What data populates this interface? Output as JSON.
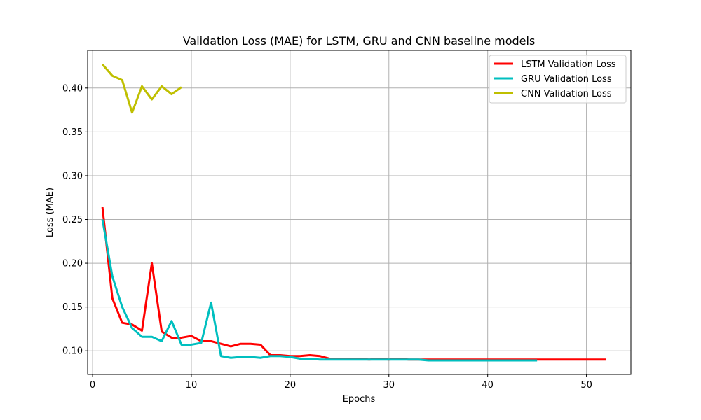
{
  "chart_data": {
    "type": "line",
    "title": "Validation Loss (MAE) for LSTM, GRU and CNN baseline models",
    "xlabel": "Epochs",
    "ylabel": "Loss (MAE)",
    "xlim": [
      -0.5,
      54.5
    ],
    "ylim": [
      0.073,
      0.443
    ],
    "xticks": [
      0,
      10,
      20,
      30,
      40,
      50
    ],
    "yticks": [
      0.1,
      0.15,
      0.2,
      0.25,
      0.3,
      0.35,
      0.4
    ],
    "ytick_labels": [
      "0.10",
      "0.15",
      "0.20",
      "0.25",
      "0.30",
      "0.35",
      "0.40"
    ],
    "grid": true,
    "legend_position": "top-right",
    "series": [
      {
        "name": "LSTM Validation Loss",
        "color": "#ff0000",
        "x": [
          1,
          2,
          3,
          4,
          5,
          6,
          7,
          8,
          9,
          10,
          11,
          12,
          13,
          14,
          15,
          16,
          17,
          18,
          19,
          20,
          21,
          22,
          23,
          24,
          25,
          26,
          27,
          28,
          29,
          30,
          31,
          32,
          33,
          34,
          35,
          36,
          37,
          38,
          39,
          40,
          41,
          42,
          43,
          44,
          45,
          46,
          47,
          48,
          49,
          50,
          51,
          52
        ],
        "values": [
          0.264,
          0.16,
          0.132,
          0.13,
          0.123,
          0.2,
          0.122,
          0.115,
          0.115,
          0.117,
          0.111,
          0.111,
          0.108,
          0.105,
          0.108,
          0.108,
          0.107,
          0.095,
          0.095,
          0.094,
          0.094,
          0.095,
          0.094,
          0.091,
          0.091,
          0.091,
          0.091,
          0.09,
          0.091,
          0.09,
          0.091,
          0.09,
          0.09,
          0.09,
          0.09,
          0.09,
          0.09,
          0.09,
          0.09,
          0.09,
          0.09,
          0.09,
          0.09,
          0.09,
          0.09,
          0.09,
          0.09,
          0.09,
          0.09,
          0.09,
          0.09,
          0.09
        ]
      },
      {
        "name": "GRU Validation Loss",
        "color": "#00bfbf",
        "x": [
          1,
          2,
          3,
          4,
          5,
          6,
          7,
          8,
          9,
          10,
          11,
          12,
          13,
          14,
          15,
          16,
          17,
          18,
          19,
          20,
          21,
          22,
          23,
          24,
          25,
          26,
          27,
          28,
          29,
          30,
          31,
          32,
          33,
          34,
          35,
          36,
          37,
          38,
          39,
          40,
          41,
          42,
          43,
          44,
          45
        ],
        "values": [
          0.25,
          0.185,
          0.15,
          0.126,
          0.116,
          0.116,
          0.111,
          0.134,
          0.107,
          0.107,
          0.109,
          0.155,
          0.094,
          0.092,
          0.093,
          0.093,
          0.092,
          0.094,
          0.094,
          0.093,
          0.091,
          0.091,
          0.09,
          0.09,
          0.09,
          0.09,
          0.09,
          0.09,
          0.09,
          0.09,
          0.09,
          0.09,
          0.09,
          0.089,
          0.089,
          0.089,
          0.089,
          0.089,
          0.089,
          0.089,
          0.089,
          0.089,
          0.089,
          0.089,
          0.089
        ]
      },
      {
        "name": "CNN Validation Loss",
        "color": "#bfbf00",
        "x": [
          1,
          2,
          3,
          4,
          5,
          6,
          7,
          8,
          9
        ],
        "values": [
          0.427,
          0.414,
          0.409,
          0.372,
          0.402,
          0.387,
          0.402,
          0.393,
          0.401
        ]
      }
    ]
  }
}
